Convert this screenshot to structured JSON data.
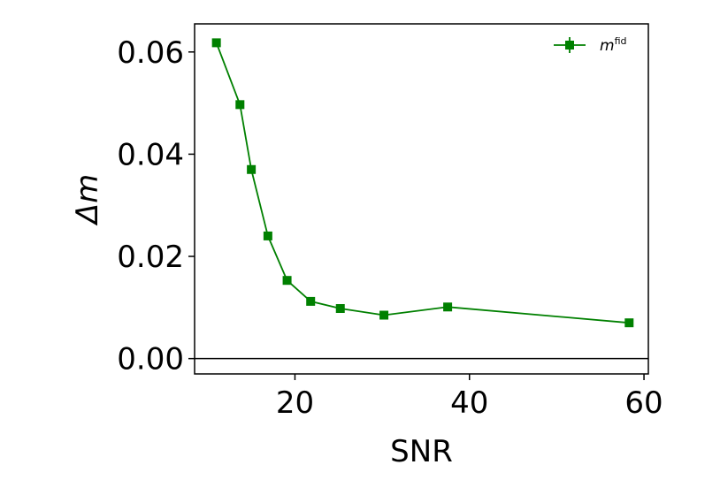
{
  "chart_data": {
    "type": "line",
    "xlabel": "SNR",
    "ylabel": "Δm",
    "xlim": [
      8.5,
      60.5
    ],
    "ylim": [
      -0.003,
      0.0655
    ],
    "xticks": [
      20,
      40,
      60
    ],
    "xtick_labels": [
      "20",
      "40",
      "60"
    ],
    "yticks": [
      0.0,
      0.02,
      0.04,
      0.06
    ],
    "ytick_labels": [
      "0.00",
      "0.02",
      "0.04",
      "0.06"
    ],
    "reference_line_y": 0.0,
    "grid": false,
    "legend_position": "top-right",
    "series": [
      {
        "name": "m",
        "name_superscript": "fid",
        "color": "#008000",
        "marker": "square",
        "x": [
          11.0,
          13.7,
          15.0,
          16.9,
          19.1,
          21.8,
          25.2,
          30.2,
          37.5,
          58.3
        ],
        "y": [
          0.0618,
          0.0497,
          0.037,
          0.024,
          0.0153,
          0.0112,
          0.0098,
          0.0085,
          0.0101,
          0.007
        ]
      }
    ]
  }
}
